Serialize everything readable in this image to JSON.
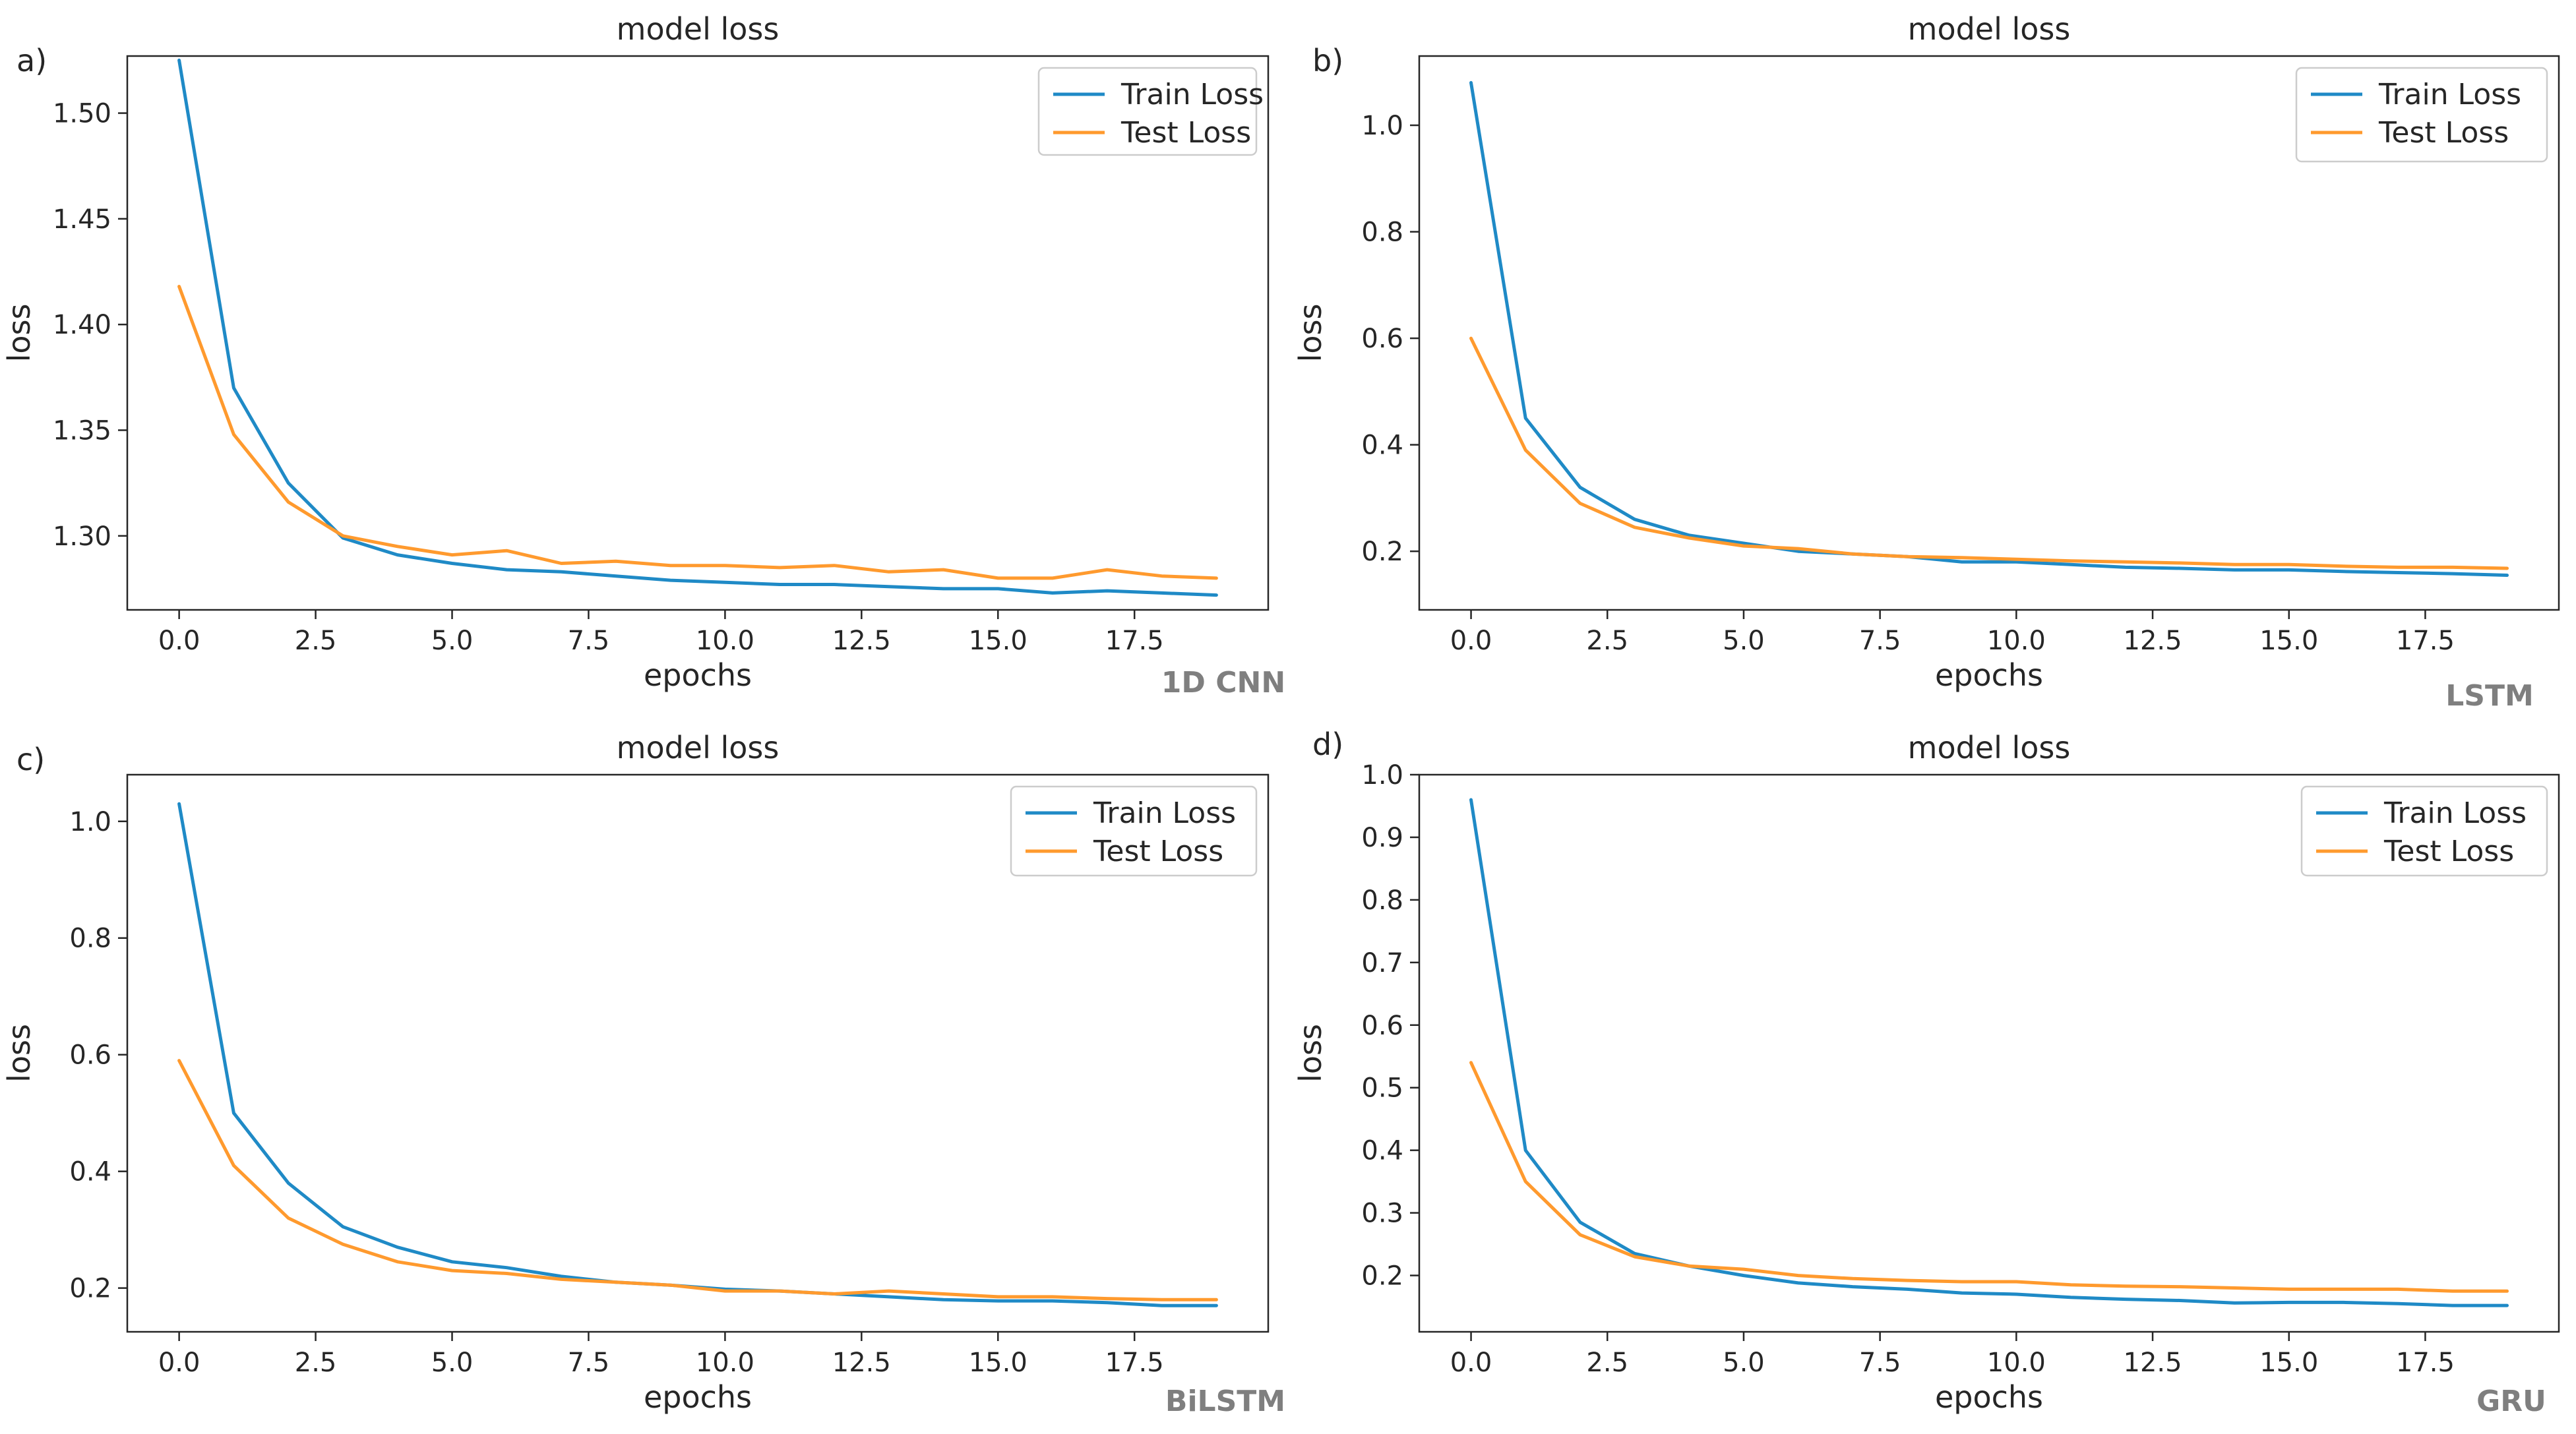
{
  "colors": {
    "train": "#1f8ac6",
    "test": "#ff9a2e",
    "model_name": "#7f7f7f",
    "axis": "#262626"
  },
  "chart_data": [
    {
      "type": "line",
      "panel": "a)",
      "title": "model loss",
      "xlabel": "epochs",
      "ylabel": "loss",
      "model_name": "1D CNN",
      "legend_position": "top-right",
      "xlim": [
        -0.95,
        19.95
      ],
      "ylim": [
        1.265,
        1.527
      ],
      "xticks": [
        0,
        2.5,
        5,
        7.5,
        10,
        12.5,
        15,
        17.5
      ],
      "xtick_labels": [
        "0.0",
        "2.5",
        "5.0",
        "7.5",
        "10.0",
        "12.5",
        "15.0",
        "17.5"
      ],
      "yticks": [
        1.3,
        1.35,
        1.4,
        1.45,
        1.5
      ],
      "ytick_labels": [
        "1.30",
        "1.35",
        "1.40",
        "1.45",
        "1.50"
      ],
      "x": [
        0,
        1,
        2,
        3,
        4,
        5,
        6,
        7,
        8,
        9,
        10,
        11,
        12,
        13,
        14,
        15,
        16,
        17,
        18,
        19
      ],
      "series": [
        {
          "name": "Train Loss",
          "values": [
            1.525,
            1.37,
            1.325,
            1.299,
            1.291,
            1.287,
            1.284,
            1.283,
            1.281,
            1.279,
            1.278,
            1.277,
            1.277,
            1.276,
            1.275,
            1.275,
            1.273,
            1.274,
            1.273,
            1.272
          ]
        },
        {
          "name": "Test Loss",
          "values": [
            1.418,
            1.348,
            1.316,
            1.3,
            1.295,
            1.291,
            1.293,
            1.287,
            1.288,
            1.286,
            1.286,
            1.285,
            1.286,
            1.283,
            1.284,
            1.28,
            1.28,
            1.284,
            1.281,
            1.28
          ]
        }
      ]
    },
    {
      "type": "line",
      "panel": "b)",
      "title": "model loss",
      "xlabel": "epochs",
      "ylabel": "loss",
      "model_name": "LSTM",
      "legend_position": "top-right",
      "xlim": [
        -0.95,
        19.95
      ],
      "ylim": [
        0.09,
        1.13
      ],
      "xticks": [
        0,
        2.5,
        5,
        7.5,
        10,
        12.5,
        15,
        17.5
      ],
      "xtick_labels": [
        "0.0",
        "2.5",
        "5.0",
        "7.5",
        "10.0",
        "12.5",
        "15.0",
        "17.5"
      ],
      "yticks": [
        0.2,
        0.4,
        0.6,
        0.8,
        1.0
      ],
      "ytick_labels": [
        "0.2",
        "0.4",
        "0.6",
        "0.8",
        "1.0"
      ],
      "x": [
        0,
        1,
        2,
        3,
        4,
        5,
        6,
        7,
        8,
        9,
        10,
        11,
        12,
        13,
        14,
        15,
        16,
        17,
        18,
        19
      ],
      "series": [
        {
          "name": "Train Loss",
          "values": [
            1.08,
            0.45,
            0.32,
            0.26,
            0.23,
            0.215,
            0.2,
            0.195,
            0.19,
            0.18,
            0.18,
            0.175,
            0.17,
            0.168,
            0.165,
            0.165,
            0.162,
            0.16,
            0.158,
            0.155
          ]
        },
        {
          "name": "Test Loss",
          "values": [
            0.6,
            0.39,
            0.29,
            0.245,
            0.225,
            0.21,
            0.205,
            0.195,
            0.19,
            0.188,
            0.185,
            0.182,
            0.18,
            0.178,
            0.175,
            0.175,
            0.172,
            0.17,
            0.17,
            0.168
          ]
        }
      ]
    },
    {
      "type": "line",
      "panel": "c)",
      "title": "model loss",
      "xlabel": "epochs",
      "ylabel": "loss",
      "model_name": "BiLSTM",
      "legend_position": "top-right",
      "xlim": [
        -0.95,
        19.95
      ],
      "ylim": [
        0.125,
        1.08
      ],
      "xticks": [
        0,
        2.5,
        5,
        7.5,
        10,
        12.5,
        15,
        17.5
      ],
      "xtick_labels": [
        "0.0",
        "2.5",
        "5.0",
        "7.5",
        "10.0",
        "12.5",
        "15.0",
        "17.5"
      ],
      "yticks": [
        0.2,
        0.4,
        0.6,
        0.8,
        1.0
      ],
      "ytick_labels": [
        "0.2",
        "0.4",
        "0.6",
        "0.8",
        "1.0"
      ],
      "x": [
        0,
        1,
        2,
        3,
        4,
        5,
        6,
        7,
        8,
        9,
        10,
        11,
        12,
        13,
        14,
        15,
        16,
        17,
        18,
        19
      ],
      "series": [
        {
          "name": "Train Loss",
          "values": [
            1.03,
            0.5,
            0.38,
            0.305,
            0.27,
            0.245,
            0.235,
            0.22,
            0.21,
            0.205,
            0.198,
            0.195,
            0.19,
            0.185,
            0.18,
            0.178,
            0.178,
            0.175,
            0.17,
            0.17
          ]
        },
        {
          "name": "Test Loss",
          "values": [
            0.59,
            0.41,
            0.32,
            0.275,
            0.245,
            0.23,
            0.225,
            0.215,
            0.21,
            0.205,
            0.195,
            0.195,
            0.19,
            0.195,
            0.19,
            0.185,
            0.185,
            0.182,
            0.18,
            0.18
          ]
        }
      ]
    },
    {
      "type": "line",
      "panel": "d)",
      "title": "model loss",
      "xlabel": "epochs",
      "ylabel": "loss",
      "model_name": "GRU",
      "legend_position": "top-right",
      "xlim": [
        -0.95,
        19.95
      ],
      "ylim": [
        0.11,
        1.0
      ],
      "xticks": [
        0,
        2.5,
        5,
        7.5,
        10,
        12.5,
        15,
        17.5
      ],
      "xtick_labels": [
        "0.0",
        "2.5",
        "5.0",
        "7.5",
        "10.0",
        "12.5",
        "15.0",
        "17.5"
      ],
      "yticks": [
        0.2,
        0.3,
        0.4,
        0.5,
        0.6,
        0.7,
        0.8,
        0.9,
        1.0
      ],
      "ytick_labels": [
        "0.2",
        "0.3",
        "0.4",
        "0.5",
        "0.6",
        "0.7",
        "0.8",
        "0.9",
        "1.0"
      ],
      "x": [
        0,
        1,
        2,
        3,
        4,
        5,
        6,
        7,
        8,
        9,
        10,
        11,
        12,
        13,
        14,
        15,
        16,
        17,
        18,
        19
      ],
      "series": [
        {
          "name": "Train Loss",
          "values": [
            0.96,
            0.4,
            0.285,
            0.235,
            0.215,
            0.2,
            0.188,
            0.182,
            0.178,
            0.172,
            0.17,
            0.165,
            0.162,
            0.16,
            0.156,
            0.157,
            0.157,
            0.155,
            0.152,
            0.152
          ]
        },
        {
          "name": "Test Loss",
          "values": [
            0.54,
            0.35,
            0.265,
            0.23,
            0.215,
            0.21,
            0.2,
            0.195,
            0.192,
            0.19,
            0.19,
            0.185,
            0.183,
            0.182,
            0.18,
            0.178,
            0.178,
            0.178,
            0.175,
            0.175
          ]
        }
      ]
    }
  ]
}
